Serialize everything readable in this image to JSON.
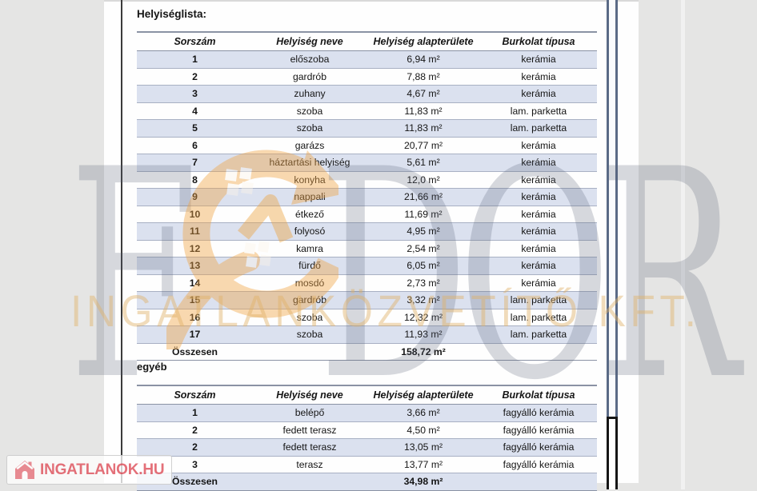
{
  "document": {
    "title": "Helyiséglista:",
    "section2_title": "egyéb"
  },
  "table1": {
    "headers": [
      "Sorszám",
      "Helyiség neve",
      "Helyiség alapterülete",
      "Burkolat típusa"
    ],
    "rows": [
      [
        "1",
        "előszoba",
        "6,94 m²",
        "kerámia"
      ],
      [
        "2",
        "gardrób",
        "7,88 m²",
        "kerámia"
      ],
      [
        "3",
        "zuhany",
        "4,67 m²",
        "kerámia"
      ],
      [
        "4",
        "szoba",
        "11,83 m²",
        "lam. parketta"
      ],
      [
        "5",
        "szoba",
        "11,83 m²",
        "lam. parketta"
      ],
      [
        "6",
        "garázs",
        "20,77 m²",
        "kerámia"
      ],
      [
        "7",
        "háztartási helyiség",
        "5,61 m²",
        "kerámia"
      ],
      [
        "8",
        "konyha",
        "12,0 m²",
        "kerámia"
      ],
      [
        "9",
        "nappali",
        "21,66 m²",
        "kerámia"
      ],
      [
        "10",
        "étkező",
        "11,69 m²",
        "kerámia"
      ],
      [
        "11",
        "folyosó",
        "4,95 m²",
        "kerámia"
      ],
      [
        "12",
        "kamra",
        "2,54 m²",
        "kerámia"
      ],
      [
        "13",
        "fürdő",
        "6,05 m²",
        "kerámia"
      ],
      [
        "14",
        "mosdó",
        "2,73 m²",
        "kerámia"
      ],
      [
        "15",
        "gardrób",
        "3,32 m²",
        "lam. parketta"
      ],
      [
        "16",
        "szoba",
        "12,32 m²",
        "lam. parketta"
      ],
      [
        "17",
        "szoba",
        "11,93 m²",
        "lam. parketta"
      ]
    ],
    "total_label": "Összesen",
    "total_value": "158,72 m²"
  },
  "table2": {
    "headers": [
      "Sorszám",
      "Helyiség neve",
      "Helyiség alapterülete",
      "Burkolat típusa"
    ],
    "rows": [
      [
        "1",
        "belépő",
        "3,66 m²",
        "fagyálló kerámia"
      ],
      [
        "2",
        "fedett terasz",
        "4,50 m²",
        "fagyálló kerámia"
      ],
      [
        "2",
        "fedett terasz",
        "13,05 m²",
        "fagyálló kerámia"
      ],
      [
        "3",
        "terasz",
        "13,77 m²",
        "fagyálló kerámia"
      ]
    ],
    "total_label": "Összesen",
    "total_value": "34,98 m²"
  },
  "watermark": {
    "letters": [
      "F",
      "D",
      "O",
      "R"
    ],
    "subtitle": "INGATLANKÖZVETÍTŐ KFT.",
    "orange": "#f0a445",
    "gray": "#586174"
  },
  "logo": {
    "text": "INGATLANOK.HU",
    "color": "#e2656e"
  },
  "colors": {
    "background": "#e5e5e4",
    "row_highlight": "#dbe1ef",
    "table_line": "#a8b0c3",
    "table_line_strong": "#8a92a4"
  }
}
